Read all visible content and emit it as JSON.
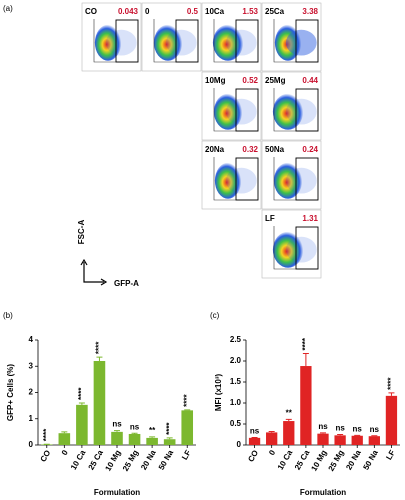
{
  "figure_a": {
    "panel_label": "(a)",
    "y_axis_label": "FSC-A",
    "x_axis_label": "GFP-A",
    "plots": [
      {
        "name": "CO",
        "percent": 0.043
      },
      {
        "name": "0",
        "percent": 0.5
      },
      {
        "name": "10Ca",
        "percent": 1.53
      },
      {
        "name": "25Ca",
        "percent": 3.38
      },
      {
        "name": "10Mg",
        "percent": 0.52
      },
      {
        "name": "25Mg",
        "percent": 0.44
      },
      {
        "name": "20Na",
        "percent": 0.32
      },
      {
        "name": "50Na",
        "percent": 0.24
      },
      {
        "name": "LF",
        "percent": 1.31
      }
    ]
  },
  "chart_data": [
    {
      "type": "bar",
      "panel_label": "(b)",
      "y_axis_label": "GFP+ Cells (%)",
      "x_axis_label": "Formulation",
      "categories": [
        "CO",
        "0",
        "10 Ca",
        "25 Ca",
        "10 Mg",
        "25 Mg",
        "20 Na",
        "50 Na",
        "LF"
      ],
      "values": [
        0.02,
        0.45,
        1.53,
        3.2,
        0.5,
        0.42,
        0.27,
        0.22,
        1.32
      ],
      "errors": [
        0.01,
        0.05,
        0.07,
        0.15,
        0.05,
        0.03,
        0.04,
        0.05,
        0.02
      ],
      "annotations": [
        "****",
        null,
        "****",
        "****",
        "ns",
        "ns",
        "**",
        "****",
        "****"
      ],
      "color": "#7cb82f",
      "ylim": [
        0,
        4
      ],
      "yticks": [
        0,
        1,
        2,
        3,
        4
      ]
    },
    {
      "type": "bar",
      "panel_label": "(c)",
      "y_axis_label": "MFI (x10³)",
      "x_axis_label": "Formulation",
      "categories": [
        "CO",
        "0",
        "10 Ca",
        "25 Ca",
        "10 Mg",
        "25 Mg",
        "20 Na",
        "50 Na",
        "LF"
      ],
      "values": [
        0.17,
        0.3,
        0.57,
        1.88,
        0.27,
        0.23,
        0.22,
        0.21,
        1.17
      ],
      "errors": [
        0.01,
        0.02,
        0.04,
        0.3,
        0.02,
        0.02,
        0.01,
        0.01,
        0.07
      ],
      "annotations": [
        "ns",
        null,
        "**",
        "****",
        "ns",
        "ns",
        "ns",
        "ns",
        "****"
      ],
      "color": "#e02424",
      "ylim": [
        0,
        2.5
      ],
      "yticks": [
        0,
        0.5,
        {
          "value": 1,
          "label": "1.0"
        },
        1.5,
        {
          "value": 2,
          "label": "2.0"
        },
        2.5
      ]
    }
  ]
}
